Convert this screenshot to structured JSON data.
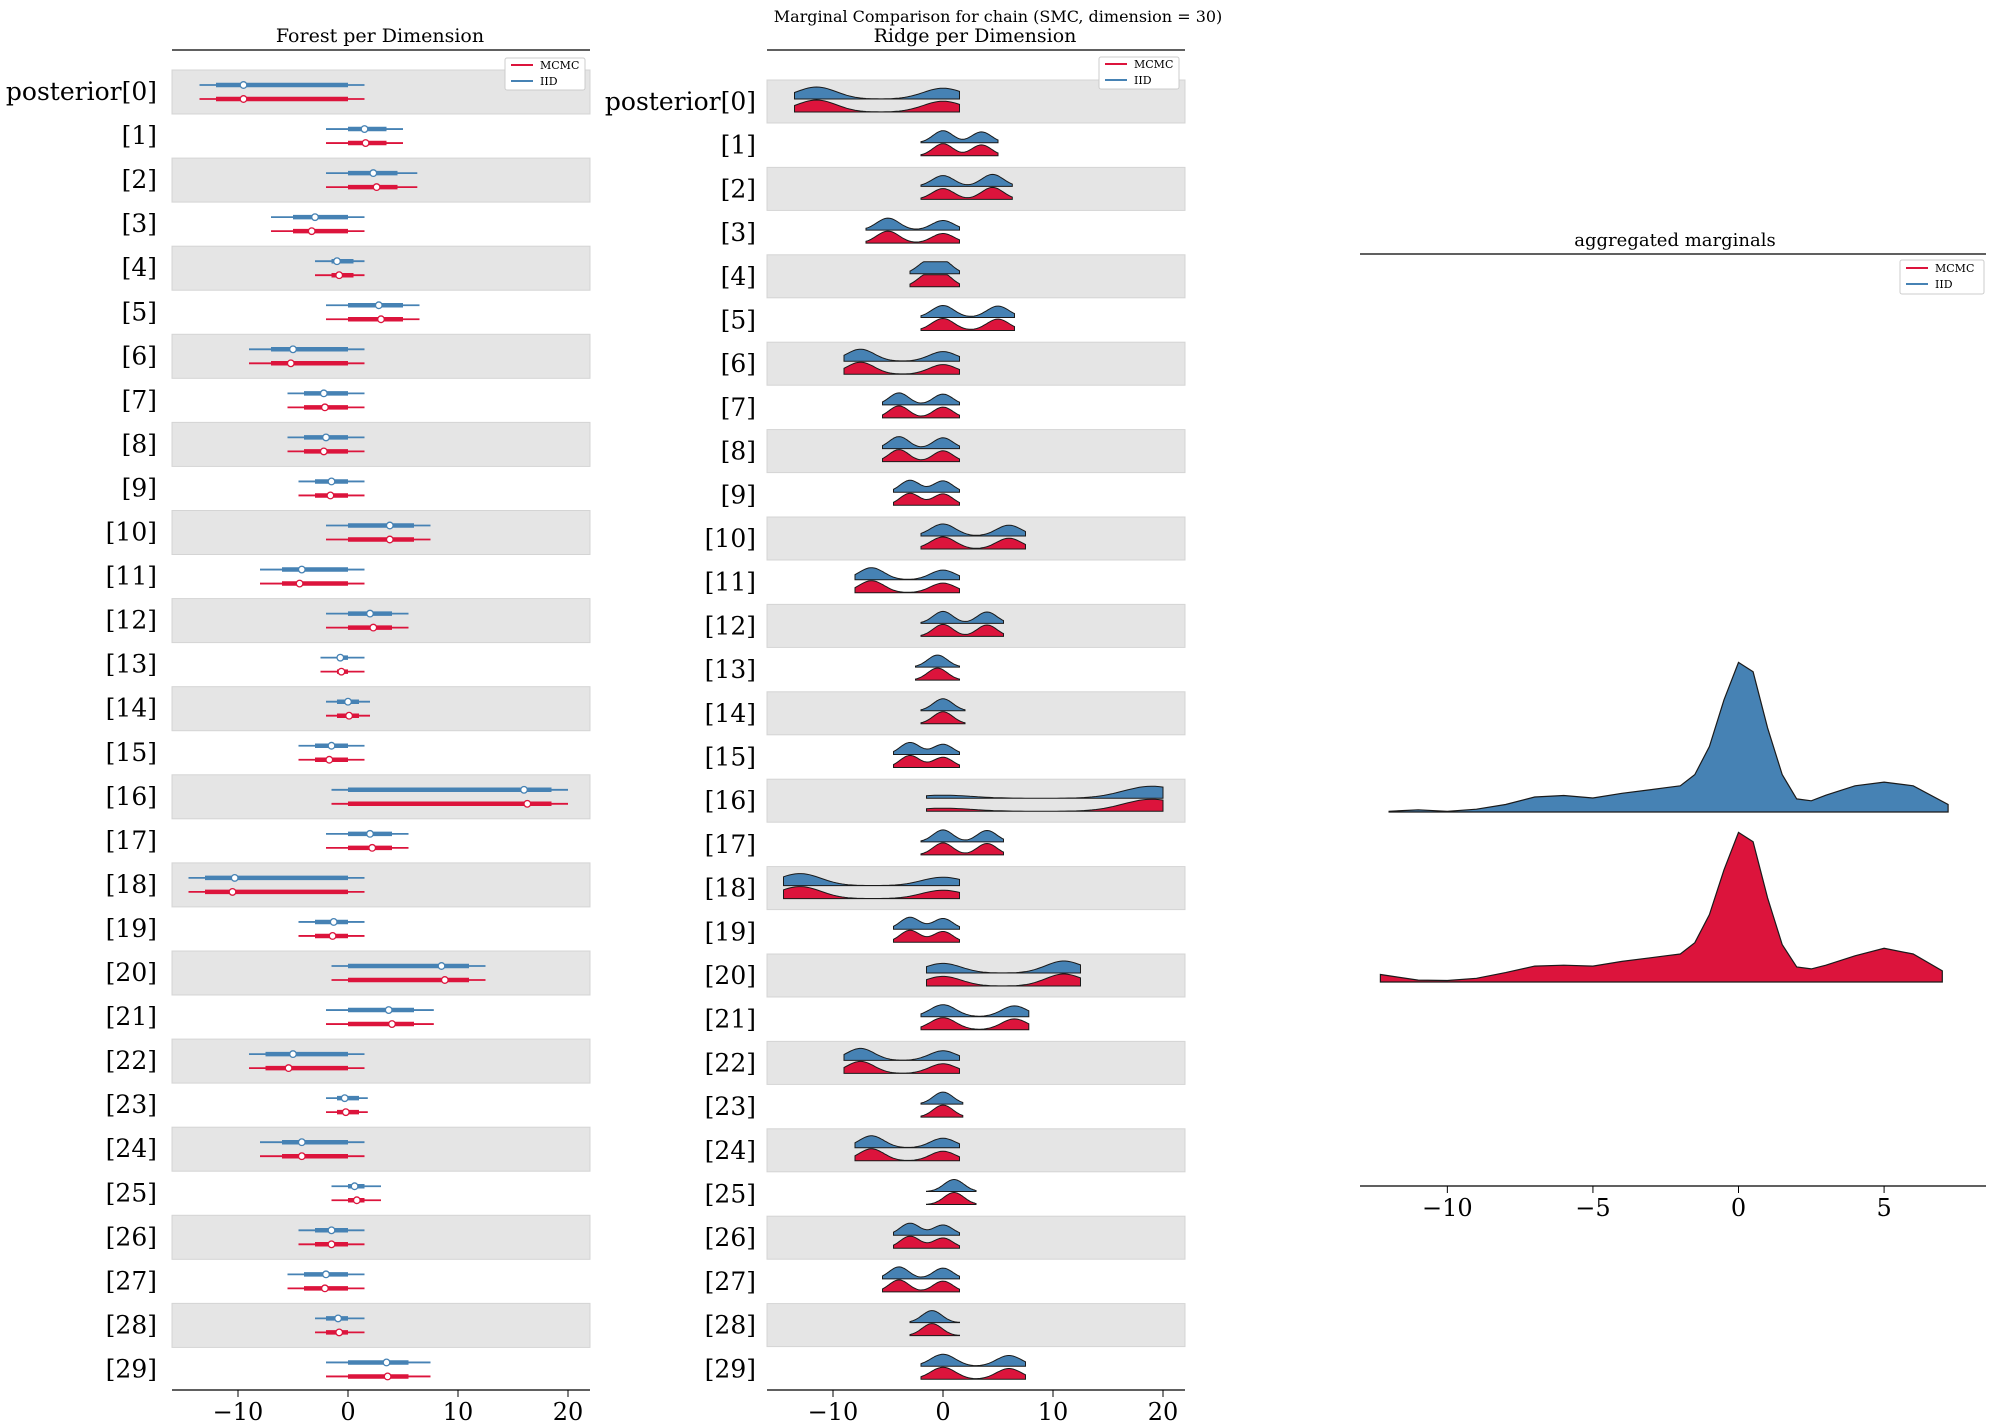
{
  "suptitle": "Marginal Comparison for chain (SMC, dimension = 30)",
  "colors": {
    "mcmc": "#dc143c",
    "iid": "#4682b4",
    "band": "#e5e5e5",
    "band_edge": "#d4d4d4"
  },
  "row_labels": [
    "posterior[0]",
    "[1]",
    "[2]",
    "[3]",
    "[4]",
    "[5]",
    "[6]",
    "[7]",
    "[8]",
    "[9]",
    "[10]",
    "[11]",
    "[12]",
    "[13]",
    "[14]",
    "[15]",
    "[16]",
    "[17]",
    "[18]",
    "[19]",
    "[20]",
    "[21]",
    "[22]",
    "[23]",
    "[24]",
    "[25]",
    "[26]",
    "[27]",
    "[28]",
    "[29]"
  ],
  "legend": [
    "MCMC",
    "IID"
  ],
  "chart_data": [
    {
      "type": "forest",
      "title": "Forest per Dimension",
      "xlim": [
        -16,
        22
      ],
      "xticks": [
        -10,
        0,
        10,
        20
      ],
      "xtick_labels": [
        "−10",
        "0",
        "10",
        "20"
      ],
      "series": [
        {
          "name": "IID",
          "hdi94": [
            [
              -13.5,
              1.5
            ],
            [
              -2,
              5
            ],
            [
              -2,
              6.3
            ],
            [
              -7,
              1.5
            ],
            [
              -3,
              1.5
            ],
            [
              -2,
              6.5
            ],
            [
              -9,
              1.5
            ],
            [
              -5.5,
              1.5
            ],
            [
              -5.5,
              1.5
            ],
            [
              -4.5,
              1.5
            ],
            [
              -2,
              7.5
            ],
            [
              -8,
              1.5
            ],
            [
              -2,
              5.5
            ],
            [
              -2.5,
              1.5
            ],
            [
              -2,
              2
            ],
            [
              -4.5,
              1.5
            ],
            [
              -1.5,
              20
            ],
            [
              -2,
              5.5
            ],
            [
              -14.5,
              1.5
            ],
            [
              -4.5,
              1.5
            ],
            [
              -1.5,
              12.5
            ],
            [
              -2,
              7.8
            ],
            [
              -9,
              1.5
            ],
            [
              -2,
              1.8
            ],
            [
              -8,
              1.5
            ],
            [
              -1.5,
              3
            ],
            [
              -4.5,
              1.5
            ],
            [
              -5.5,
              1.5
            ],
            [
              -3,
              1.5
            ],
            [
              -2,
              7.5
            ]
          ],
          "iqr": [
            [
              -12,
              0
            ],
            [
              0,
              3.5
            ],
            [
              0,
              4.5
            ],
            [
              -5,
              0
            ],
            [
              -1.5,
              0.5
            ],
            [
              0,
              5
            ],
            [
              -7,
              0
            ],
            [
              -4,
              0
            ],
            [
              -4,
              0
            ],
            [
              -3,
              0
            ],
            [
              0,
              6
            ],
            [
              -6,
              0
            ],
            [
              0,
              4
            ],
            [
              -1,
              0
            ],
            [
              -1,
              1
            ],
            [
              -3,
              0
            ],
            [
              0,
              18.5
            ],
            [
              0,
              4
            ],
            [
              -13,
              0
            ],
            [
              -3,
              0
            ],
            [
              0,
              11
            ],
            [
              0,
              6
            ],
            [
              -7.5,
              0
            ],
            [
              -1,
              1
            ],
            [
              -6,
              0
            ],
            [
              0,
              1.5
            ],
            [
              -3,
              0
            ],
            [
              -4,
              0
            ],
            [
              -2,
              0
            ],
            [
              0,
              5.5
            ]
          ],
          "median": [
            -9.5,
            1.5,
            2.3,
            -3,
            -1,
            2.8,
            -5,
            -2.2,
            -2,
            -1.5,
            3.8,
            -4.2,
            2,
            -0.7,
            0,
            -1.5,
            16,
            2,
            -10.3,
            -1.3,
            8.5,
            3.7,
            -5,
            -0.3,
            -4.2,
            0.6,
            -1.5,
            -2,
            -0.9,
            3.5
          ]
        },
        {
          "name": "MCMC",
          "hdi94": [
            [
              -13.5,
              1.5
            ],
            [
              -2,
              5
            ],
            [
              -2,
              6.3
            ],
            [
              -7,
              1.5
            ],
            [
              -3,
              1.5
            ],
            [
              -2,
              6.5
            ],
            [
              -9,
              1.5
            ],
            [
              -5.5,
              1.5
            ],
            [
              -5.5,
              1.5
            ],
            [
              -4.5,
              1.5
            ],
            [
              -2,
              7.5
            ],
            [
              -8,
              1.5
            ],
            [
              -2,
              5.5
            ],
            [
              -2.5,
              1.5
            ],
            [
              -2,
              2
            ],
            [
              -4.5,
              1.5
            ],
            [
              -1.5,
              20
            ],
            [
              -2,
              5.5
            ],
            [
              -14.5,
              1.5
            ],
            [
              -4.5,
              1.5
            ],
            [
              -1.5,
              12.5
            ],
            [
              -2,
              7.8
            ],
            [
              -9,
              1.5
            ],
            [
              -2,
              1.8
            ],
            [
              -8,
              1.5
            ],
            [
              -1.5,
              3
            ],
            [
              -4.5,
              1.5
            ],
            [
              -5.5,
              1.5
            ],
            [
              -3,
              1.5
            ],
            [
              -2,
              7.5
            ]
          ],
          "iqr": [
            [
              -12,
              0
            ],
            [
              0,
              3.5
            ],
            [
              0,
              4.5
            ],
            [
              -5,
              0
            ],
            [
              -1.5,
              0.5
            ],
            [
              0,
              5
            ],
            [
              -7,
              0
            ],
            [
              -4,
              0
            ],
            [
              -4,
              0
            ],
            [
              -3,
              0
            ],
            [
              0,
              6
            ],
            [
              -6,
              0
            ],
            [
              0,
              4
            ],
            [
              -1,
              0
            ],
            [
              -1,
              1
            ],
            [
              -3,
              0
            ],
            [
              0,
              18.5
            ],
            [
              0,
              4
            ],
            [
              -13,
              0
            ],
            [
              -3,
              0
            ],
            [
              0,
              11
            ],
            [
              0,
              6
            ],
            [
              -7.5,
              0
            ],
            [
              -1,
              1
            ],
            [
              -6,
              0
            ],
            [
              0,
              1.5
            ],
            [
              -3,
              0
            ],
            [
              -4,
              0
            ],
            [
              -2,
              0
            ],
            [
              0,
              5.5
            ]
          ],
          "median": [
            -9.5,
            1.6,
            2.6,
            -3.3,
            -0.8,
            3,
            -5.2,
            -2.1,
            -2.2,
            -1.6,
            3.8,
            -4.4,
            2.3,
            -0.6,
            0.1,
            -1.7,
            16.3,
            2.2,
            -10.5,
            -1.4,
            8.8,
            4,
            -5.4,
            -0.2,
            -4.2,
            0.8,
            -1.5,
            -2.1,
            -0.8,
            3.6
          ]
        }
      ]
    },
    {
      "type": "ridge",
      "title": "Ridge per Dimension",
      "xlim": [
        -16,
        22
      ],
      "xticks": [
        -10,
        0,
        10,
        20
      ],
      "xtick_labels": [
        "−10",
        "0",
        "10",
        "20"
      ],
      "rows": [
        {
          "lo": -13.5,
          "hi": 1.5,
          "peaks": [
            [
              -11.5,
              1
            ],
            [
              0,
              0.9
            ]
          ]
        },
        {
          "lo": -2,
          "hi": 5,
          "peaks": [
            [
              0,
              1
            ],
            [
              3.5,
              0.9
            ]
          ]
        },
        {
          "lo": -2,
          "hi": 6.3,
          "peaks": [
            [
              0,
              0.9
            ],
            [
              4.5,
              1
            ]
          ]
        },
        {
          "lo": -7,
          "hi": 1.5,
          "peaks": [
            [
              -5,
              1
            ],
            [
              0,
              0.8
            ]
          ]
        },
        {
          "lo": -3,
          "hi": 1.5,
          "peaks": [
            [
              -1.5,
              0.9
            ],
            [
              0,
              1
            ]
          ]
        },
        {
          "lo": -2,
          "hi": 6.5,
          "peaks": [
            [
              0,
              1
            ],
            [
              5,
              0.95
            ]
          ]
        },
        {
          "lo": -9,
          "hi": 1.5,
          "peaks": [
            [
              -7.5,
              1
            ],
            [
              0,
              0.8
            ]
          ]
        },
        {
          "lo": -5.5,
          "hi": 1.5,
          "peaks": [
            [
              -4,
              1
            ],
            [
              0,
              0.9
            ]
          ]
        },
        {
          "lo": -5.5,
          "hi": 1.5,
          "peaks": [
            [
              -4,
              1
            ],
            [
              0,
              0.9
            ]
          ]
        },
        {
          "lo": -4.5,
          "hi": 1.5,
          "peaks": [
            [
              -3,
              1
            ],
            [
              0,
              0.95
            ]
          ]
        },
        {
          "lo": -2,
          "hi": 7.5,
          "peaks": [
            [
              0,
              1
            ],
            [
              6,
              0.9
            ]
          ]
        },
        {
          "lo": -8,
          "hi": 1.5,
          "peaks": [
            [
              -6.5,
              1
            ],
            [
              0,
              0.8
            ]
          ]
        },
        {
          "lo": -2,
          "hi": 5.5,
          "peaks": [
            [
              0,
              1
            ],
            [
              4,
              0.95
            ]
          ]
        },
        {
          "lo": -2.5,
          "hi": 1.5,
          "peaks": [
            [
              -0.5,
              1
            ]
          ]
        },
        {
          "lo": -2,
          "hi": 2,
          "peaks": [
            [
              0,
              1
            ]
          ]
        },
        {
          "lo": -4.5,
          "hi": 1.5,
          "peaks": [
            [
              -3,
              1
            ],
            [
              0,
              0.85
            ]
          ]
        },
        {
          "lo": -1.5,
          "hi": 20,
          "peaks": [
            [
              0,
              0.25
            ],
            [
              19,
              1
            ]
          ]
        },
        {
          "lo": -2,
          "hi": 5.5,
          "peaks": [
            [
              0,
              1
            ],
            [
              4,
              0.95
            ]
          ]
        },
        {
          "lo": -14.5,
          "hi": 1.5,
          "peaks": [
            [
              -13,
              1
            ],
            [
              0,
              0.7
            ]
          ]
        },
        {
          "lo": -4.5,
          "hi": 1.5,
          "peaks": [
            [
              -3,
              1
            ],
            [
              0,
              0.9
            ]
          ]
        },
        {
          "lo": -1.5,
          "hi": 12.5,
          "peaks": [
            [
              0,
              0.8
            ],
            [
              11,
              1
            ]
          ]
        },
        {
          "lo": -2,
          "hi": 7.8,
          "peaks": [
            [
              0,
              1
            ],
            [
              6.5,
              0.9
            ]
          ]
        },
        {
          "lo": -9,
          "hi": 1.5,
          "peaks": [
            [
              -7.5,
              1
            ],
            [
              0,
              0.8
            ]
          ]
        },
        {
          "lo": -2,
          "hi": 1.8,
          "peaks": [
            [
              0,
              1
            ]
          ]
        },
        {
          "lo": -8,
          "hi": 1.5,
          "peaks": [
            [
              -6.5,
              1
            ],
            [
              0,
              0.8
            ]
          ]
        },
        {
          "lo": -1.5,
          "hi": 3,
          "peaks": [
            [
              1,
              1
            ]
          ]
        },
        {
          "lo": -4.5,
          "hi": 1.5,
          "peaks": [
            [
              -3,
              1
            ],
            [
              0,
              0.85
            ]
          ]
        },
        {
          "lo": -5.5,
          "hi": 1.5,
          "peaks": [
            [
              -4,
              1
            ],
            [
              0,
              0.9
            ]
          ]
        },
        {
          "lo": -3,
          "hi": 1.5,
          "peaks": [
            [
              -1,
              1
            ]
          ]
        },
        {
          "lo": -2,
          "hi": 7.5,
          "peaks": [
            [
              0,
              1
            ],
            [
              6,
              0.9
            ]
          ]
        }
      ]
    },
    {
      "type": "area",
      "title": "aggregated marginals",
      "xlim": [
        -13,
        8.5
      ],
      "xticks": [
        -10,
        -5,
        0,
        5
      ],
      "xtick_labels": [
        "−10",
        "−5",
        "0",
        "5"
      ],
      "series": [
        {
          "name": "IID",
          "x": [
            -12,
            -11,
            -10,
            -9,
            -8,
            -7,
            -6,
            -5,
            -4,
            -3,
            -2.5,
            -2,
            -1.5,
            -1,
            -0.5,
            0,
            0.5,
            1,
            1.5,
            2,
            2.5,
            3,
            4,
            5,
            6,
            7.2
          ],
          "y": [
            0.004,
            0.012,
            0.004,
            0.015,
            0.04,
            0.08,
            0.088,
            0.075,
            0.1,
            0.12,
            0.13,
            0.14,
            0.2,
            0.35,
            0.6,
            0.8,
            0.75,
            0.45,
            0.2,
            0.07,
            0.06,
            0.09,
            0.14,
            0.16,
            0.14,
            0.04
          ]
        },
        {
          "name": "MCMC",
          "x": [
            -12.3,
            -11,
            -10,
            -9,
            -8,
            -7,
            -6,
            -5,
            -4,
            -3,
            -2.5,
            -2,
            -1.5,
            -1,
            -0.5,
            0,
            0.5,
            1,
            1.5,
            2,
            2.5,
            3,
            4,
            5,
            6,
            7
          ],
          "y": [
            0.04,
            0.01,
            0.008,
            0.02,
            0.05,
            0.085,
            0.09,
            0.085,
            0.11,
            0.13,
            0.14,
            0.15,
            0.21,
            0.36,
            0.6,
            0.8,
            0.75,
            0.45,
            0.2,
            0.08,
            0.07,
            0.09,
            0.14,
            0.18,
            0.15,
            0.06
          ]
        }
      ]
    }
  ]
}
